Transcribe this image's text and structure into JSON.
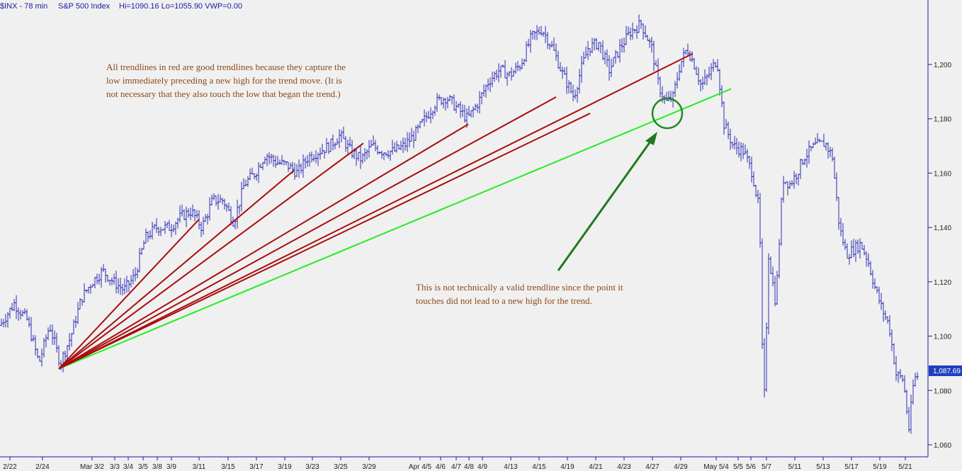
{
  "header": {
    "symbol": "$INX - 78 min",
    "name": "S&P 500 Index",
    "stats": "Hi=1090.16  Lo=1055.90  VWP=0.00"
  },
  "last_price": "1,087.69",
  "colors": {
    "bars": "#2b2bb3",
    "good_trendline": "#a80d0d",
    "invalid_trendline": "#22ee22",
    "annotation_arrow": "#1f7a1f",
    "annotation_text": "#8a4a1a",
    "background": "#f0f0f0"
  },
  "annotations": {
    "good": [
      "All trendlines in red are good trendlines because they capture the",
      "low immediately preceding a new high for the trend move.  (It is",
      "not necessary that they also touch the low that began the trend.)"
    ],
    "invalid": [
      "This is not technically a valid trendline since the point it",
      "touches did not lead to a new high for the trend."
    ]
  },
  "chart_data": {
    "type": "ohlc",
    "y_axis": {
      "position": "right",
      "ylim": [
        1055,
        1220
      ],
      "ticks": [
        "1,060",
        "1,080",
        "1,100",
        "1,120",
        "1,140",
        "1,160",
        "1,180",
        "1,200"
      ],
      "tick_values": [
        1060,
        1080,
        1100,
        1120,
        1140,
        1160,
        1180,
        1200
      ]
    },
    "x_axis": {
      "ticks": [
        "2/22",
        "2/24",
        "Mar 3/2",
        "3/3",
        "3/4",
        "3/5",
        "3/8",
        "3/9",
        "3/11",
        "3/15",
        "3/17",
        "3/19",
        "3/23",
        "3/25",
        "3/29",
        "Apr 4/5",
        "4/6",
        "4/7",
        "4/8",
        "4/9",
        "4/13",
        "4/15",
        "4/19",
        "4/21",
        "4/23",
        "4/27",
        "4/29",
        "May 5/4",
        "5/5",
        "5/6",
        "5/7",
        "5/11",
        "5/13",
        "5/17",
        "5/19",
        "5/21"
      ]
    },
    "trendlines": {
      "start": {
        "x": "2/24",
        "y": 1088
      },
      "red": [
        {
          "end_x": "3/11",
          "end_y": 1143
        },
        {
          "end_x": "3/19",
          "end_y": 1161
        },
        {
          "end_x": "3/29",
          "end_y": 1171
        },
        {
          "end_x": "4/8",
          "end_y": 1178
        },
        {
          "end_x": "4/19",
          "end_y": 1182
        },
        {
          "end_x": "4/27",
          "end_y": 1188
        },
        {
          "end_x": "May 5/4",
          "end_y": 1204
        }
      ],
      "green": {
        "end_x": "5/5",
        "end_y": 1191
      }
    },
    "price_path": [
      [
        0,
        1104
      ],
      [
        20,
        1112
      ],
      [
        38,
        1106
      ],
      [
        55,
        1090
      ],
      [
        70,
        1104
      ],
      [
        85,
        1090
      ],
      [
        100,
        1100
      ],
      [
        115,
        1114
      ],
      [
        130,
        1120
      ],
      [
        145,
        1124
      ],
      [
        160,
        1120
      ],
      [
        175,
        1117
      ],
      [
        190,
        1122
      ],
      [
        205,
        1136
      ],
      [
        220,
        1140
      ],
      [
        240,
        1140
      ],
      [
        255,
        1144
      ],
      [
        270,
        1146
      ],
      [
        285,
        1140
      ],
      [
        300,
        1150
      ],
      [
        315,
        1150
      ],
      [
        330,
        1142
      ],
      [
        345,
        1156
      ],
      [
        360,
        1160
      ],
      [
        375,
        1167
      ],
      [
        390,
        1164
      ],
      [
        405,
        1163
      ],
      [
        420,
        1160
      ],
      [
        435,
        1166
      ],
      [
        450,
        1168
      ],
      [
        465,
        1170
      ],
      [
        480,
        1174
      ],
      [
        495,
        1168
      ],
      [
        510,
        1165
      ],
      [
        525,
        1170
      ],
      [
        540,
        1168
      ],
      [
        555,
        1168
      ],
      [
        570,
        1170
      ],
      [
        585,
        1174
      ],
      [
        600,
        1180
      ],
      [
        615,
        1186
      ],
      [
        630,
        1188
      ],
      [
        645,
        1184
      ],
      [
        660,
        1180
      ],
      [
        675,
        1186
      ],
      [
        690,
        1194
      ],
      [
        705,
        1198
      ],
      [
        720,
        1196
      ],
      [
        735,
        1200
      ],
      [
        750,
        1210
      ],
      [
        765,
        1213
      ],
      [
        780,
        1206
      ],
      [
        795,
        1196
      ],
      [
        810,
        1188
      ],
      [
        820,
        1198
      ],
      [
        830,
        1206
      ],
      [
        845,
        1208
      ],
      [
        860,
        1198
      ],
      [
        875,
        1206
      ],
      [
        890,
        1212
      ],
      [
        905,
        1215
      ],
      [
        920,
        1206
      ],
      [
        930,
        1192
      ],
      [
        940,
        1186
      ],
      [
        950,
        1188
      ],
      [
        960,
        1200
      ],
      [
        970,
        1206
      ],
      [
        980,
        1200
      ],
      [
        990,
        1192
      ],
      [
        1000,
        1196
      ],
      [
        1012,
        1202
      ],
      [
        1022,
        1178
      ],
      [
        1035,
        1170
      ],
      [
        1050,
        1168
      ],
      [
        1062,
        1160
      ],
      [
        1072,
        1146
      ],
      [
        1078,
        1070
      ],
      [
        1085,
        1130
      ],
      [
        1095,
        1112
      ],
      [
        1105,
        1158
      ],
      [
        1115,
        1156
      ],
      [
        1125,
        1160
      ],
      [
        1135,
        1166
      ],
      [
        1150,
        1170
      ],
      [
        1165,
        1171
      ],
      [
        1175,
        1166
      ],
      [
        1185,
        1140
      ],
      [
        1195,
        1130
      ],
      [
        1205,
        1132
      ],
      [
        1215,
        1134
      ],
      [
        1225,
        1128
      ],
      [
        1235,
        1118
      ],
      [
        1245,
        1110
      ],
      [
        1255,
        1104
      ],
      [
        1265,
        1086
      ],
      [
        1275,
        1084
      ],
      [
        1283,
        1066
      ],
      [
        1290,
        1084
      ],
      [
        1297,
        1086
      ]
    ]
  }
}
